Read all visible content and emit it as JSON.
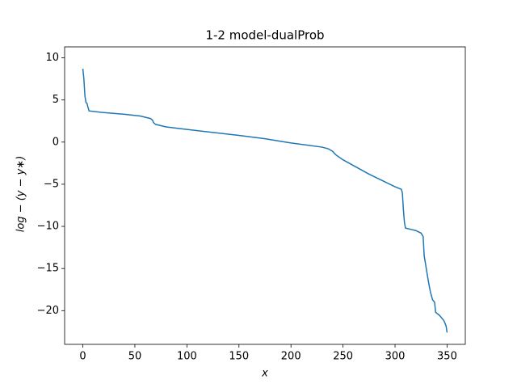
{
  "chart_data": {
    "type": "line",
    "title": "1-2 model-dualProb",
    "x_label": "x",
    "y_label": "log − (y − y∗)",
    "series": [
      {
        "name": "dualProb",
        "color": "#1f77b4",
        "x": [
          0,
          1,
          2,
          3,
          4,
          5,
          6,
          20,
          40,
          55,
          65,
          67,
          68,
          70,
          80,
          100,
          150,
          175,
          200,
          230,
          236,
          240,
          243,
          250,
          275,
          300,
          306,
          307,
          308,
          309,
          310,
          320,
          325,
          327,
          328,
          330,
          332,
          334,
          336,
          338,
          339,
          343,
          347,
          349,
          350
        ],
        "values": [
          8.7,
          7.5,
          5.5,
          4.7,
          4.6,
          4.1,
          3.7,
          3.5,
          3.3,
          3.1,
          2.8,
          2.6,
          2.3,
          2.1,
          1.8,
          1.5,
          0.8,
          0.4,
          -0.1,
          -0.6,
          -0.8,
          -1.1,
          -1.5,
          -2.1,
          -3.8,
          -5.3,
          -5.6,
          -6.0,
          -8.0,
          -9.5,
          -10.2,
          -10.5,
          -10.8,
          -11.2,
          -13.5,
          -15.0,
          -16.5,
          -17.8,
          -18.7,
          -19.0,
          -20.2,
          -20.6,
          -21.2,
          -21.8,
          -22.6
        ]
      }
    ],
    "xlim": [
      -17.5,
      367.5
    ],
    "xticks": [
      0,
      50,
      100,
      150,
      200,
      250,
      300,
      350
    ],
    "ylim": [
      -24.0,
      11.3
    ],
    "yticks": [
      10,
      5,
      0,
      {
        "value": -5,
        "label": "−5"
      },
      {
        "value": -10,
        "label": "−10"
      },
      {
        "value": -15,
        "label": "−15"
      },
      {
        "value": -20,
        "label": "−20"
      }
    ]
  }
}
